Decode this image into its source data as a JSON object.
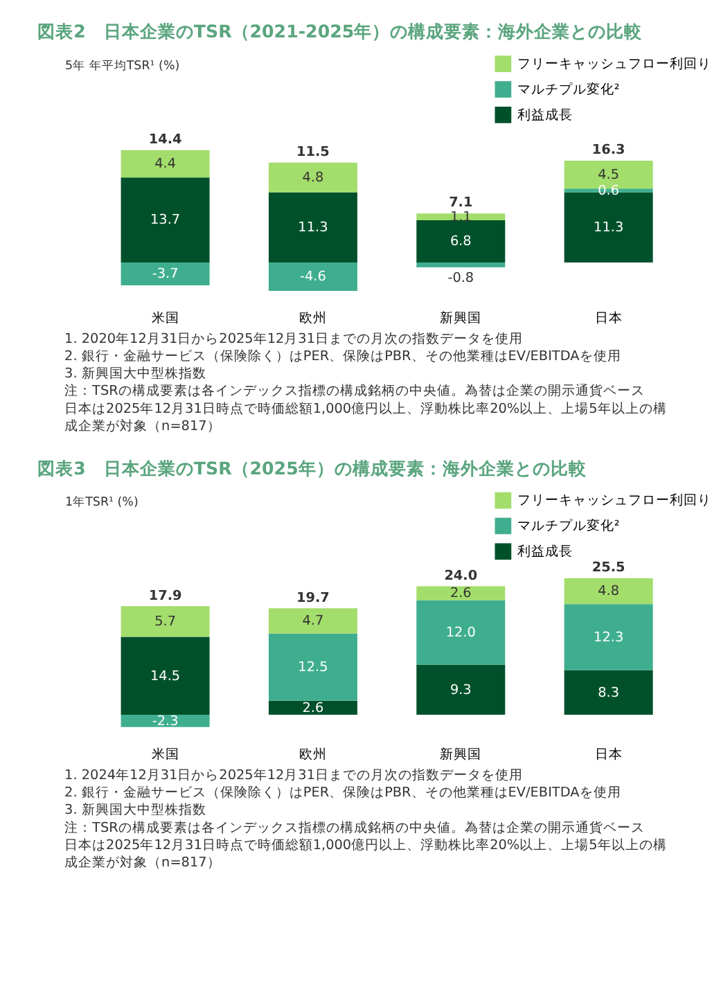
{
  "chart_data": [
    {
      "type": "bar",
      "stacked": true,
      "title": "図表2　日本企業のTSR（2021-2025年）の構成要素：海外企業との比較",
      "ylabel": "5年 年平均TSR¹ (%)",
      "categories": [
        "米国",
        "欧州",
        "新興国",
        "日本"
      ],
      "series": [
        {
          "name": "利益成長",
          "color": "#00512b",
          "values": [
            13.7,
            11.3,
            6.8,
            11.3
          ],
          "value_labels": [
            "13.7",
            "11.3",
            "6.8",
            "11.3"
          ]
        },
        {
          "name": "マルチプル変化²",
          "color": "#3fae8f",
          "values": [
            -3.7,
            -4.6,
            -0.8,
            0.6
          ],
          "value_labels": [
            "-3.7",
            "-4.6",
            "-0.8",
            "0.6"
          ]
        },
        {
          "name": "フリーキャッシュフロー利回り",
          "color": "#a3dd6b",
          "values": [
            4.4,
            4.8,
            1.1,
            4.5
          ],
          "value_labels": [
            "4.4",
            "4.8",
            "1.1",
            "4.5"
          ]
        }
      ],
      "totals": [
        "14.4",
        "11.5",
        "7.1",
        "16.3"
      ],
      "legend": "top right",
      "grid": false,
      "annotations": [
        "1. 2020年12月31日から2025年12月31日までの月次の指数データを使用",
        "2. 銀行・金融サービス（保険除く）はPER、保険はPBR、その他業種はEV/EBITDAを使用",
        "3. 新興国大中型株指数",
        "注：TSRの構成要素は各インデックス指標の構成銘柄の中央値。為替は企業の開示通貨ベース",
        "日本は2025年12月31日時点で時価総額1,000億円以上、浮動株比率20%以上、上場5年以上の構成企業が対象（n=817）"
      ]
    },
    {
      "type": "bar",
      "stacked": true,
      "title": "図表3　日本企業のTSR（2025年）の構成要素：海外企業との比較",
      "ylabel": "1年TSR¹ (%)",
      "categories": [
        "米国",
        "欧州",
        "新興国",
        "日本"
      ],
      "series": [
        {
          "name": "利益成長",
          "color": "#00512b",
          "values": [
            14.5,
            2.6,
            9.3,
            8.3
          ],
          "value_labels": [
            "14.5",
            "2.6",
            "9.3",
            "8.3"
          ]
        },
        {
          "name": "マルチプル変化²",
          "color": "#3fae8f",
          "values": [
            -2.3,
            12.5,
            12.0,
            12.3
          ],
          "value_labels": [
            "-2.3",
            "12.5",
            "12.0",
            "12.3"
          ]
        },
        {
          "name": "フリーキャッシュフロー利回り",
          "color": "#a3dd6b",
          "values": [
            5.7,
            4.7,
            2.6,
            4.8
          ],
          "value_labels": [
            "5.7",
            "4.7",
            "2.6",
            "4.8"
          ]
        }
      ],
      "totals": [
        "17.9",
        "19.7",
        "24.0",
        "25.5"
      ],
      "legend": "top right",
      "grid": false,
      "annotations": [
        "1. 2024年12月31日から2025年12月31日までの月次の指数データを使用",
        "2. 銀行・金融サービス（保険除く）はPER、保険はPBR、その他業種はEV/EBITDAを使用",
        "3. 新興国大中型株指数",
        "注：TSRの構成要素は各インデックス指標の構成銘柄の中央値。為替は企業の開示通貨ベース",
        "日本は2025年12月31日時点で時価総額1,000億円以上、浮動株比率20%以上、上場5年以上の構成企業が対象（n=817）"
      ]
    }
  ]
}
